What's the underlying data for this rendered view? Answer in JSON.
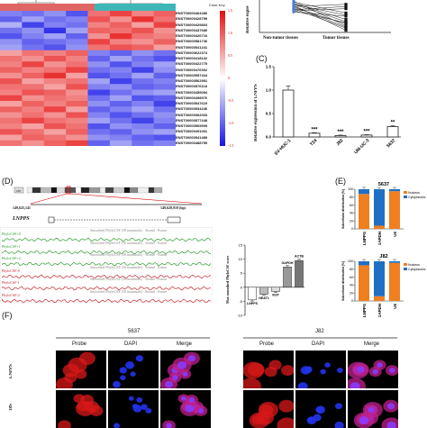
{
  "panelA": {
    "genes": [
      "ENST00000464286",
      "ENST00000428759",
      "ENST00000429803",
      "ENST00000437680",
      "ENST00000426710",
      "ENST00000581736",
      "ENST00000541241",
      "ENST00000622374",
      "ENST00000418132",
      "ENST00000422775",
      "ENST00000476302",
      "ENST00000557434",
      "ENST00000562951",
      "ENST00000576118",
      "ENST00000459094",
      "ENST00000498976",
      "ENST00000547619",
      "ENST00000534246",
      "ENST00000362033",
      "ENST00000577448",
      "ENST00000565905",
      "ENST00000491001",
      "ENST00000541489",
      "ENST00000488759"
    ],
    "colorbar_label": "Color Key",
    "colorbar_ticks": [
      "1.5",
      "1.0",
      "0.5",
      "0",
      "-0.5",
      "-1.0",
      "-1.5"
    ],
    "heatmap_values": [
      [
        -0.8,
        -0.9,
        -0.7,
        -1.1,
        0.9,
        1.2,
        0.8,
        1.0
      ],
      [
        -1.0,
        -0.6,
        -0.9,
        -0.8,
        1.1,
        0.7,
        1.3,
        0.9
      ],
      [
        -0.5,
        -1.2,
        -0.8,
        -0.9,
        0.8,
        1.0,
        0.6,
        1.2
      ],
      [
        -0.9,
        -0.7,
        -1.3,
        -0.6,
        1.0,
        0.9,
        1.1,
        0.7
      ],
      [
        -1.1,
        -0.8,
        -0.6,
        -1.0,
        0.7,
        1.3,
        0.9,
        0.8
      ],
      [
        -0.7,
        -1.0,
        -0.9,
        -0.8,
        1.2,
        0.8,
        0.7,
        1.0
      ],
      [
        -0.6,
        -0.9,
        -1.1,
        -0.7,
        0.9,
        1.1,
        1.0,
        0.6
      ],
      [
        0.6,
        0.9,
        0.8,
        1.0,
        -0.8,
        -1.0,
        -0.7,
        -0.9
      ],
      [
        0.9,
        0.7,
        1.1,
        0.8,
        -1.0,
        -0.6,
        -0.9,
        -1.1
      ],
      [
        0.8,
        1.2,
        0.7,
        0.9,
        -0.7,
        -1.1,
        -0.8,
        -0.6
      ],
      [
        1.0,
        0.8,
        0.9,
        1.2,
        -0.9,
        -0.8,
        -1.2,
        -0.7
      ],
      [
        0.7,
        1.0,
        1.3,
        0.6,
        -1.1,
        -0.9,
        -0.6,
        -1.0
      ],
      [
        1.1,
        0.6,
        0.8,
        0.9,
        -0.6,
        -1.2,
        -0.9,
        -0.8
      ],
      [
        0.9,
        0.9,
        0.6,
        1.1,
        -0.8,
        -0.7,
        -1.0,
        -0.9
      ],
      [
        0.8,
        1.1,
        1.0,
        0.7,
        -1.2,
        -0.9,
        -0.7,
        -0.6
      ],
      [
        1.2,
        0.7,
        0.9,
        0.8,
        -0.9,
        -0.6,
        -1.1,
        -1.0
      ],
      [
        0.6,
        1.0,
        0.8,
        1.0,
        -0.7,
        -1.0,
        -0.8,
        -1.2
      ],
      [
        1.0,
        0.8,
        1.2,
        0.6,
        -1.0,
        -0.8,
        -0.6,
        -0.9
      ],
      [
        0.7,
        0.9,
        0.7,
        1.1,
        -0.8,
        -1.1,
        -0.9,
        -0.7
      ],
      [
        0.9,
        1.2,
        0.9,
        0.8,
        -0.6,
        -0.9,
        -1.2,
        -0.8
      ],
      [
        0.8,
        0.6,
        1.1,
        0.9,
        -1.1,
        -0.7,
        -0.8,
        -1.0
      ],
      [
        1.1,
        0.9,
        0.6,
        1.0,
        -0.9,
        -1.0,
        -0.7,
        -0.6
      ],
      [
        0.6,
        1.0,
        0.9,
        0.7,
        -0.7,
        -0.8,
        -1.0,
        -1.1
      ],
      [
        0.9,
        0.7,
        1.0,
        1.2,
        -1.0,
        -0.6,
        -0.9,
        -0.8
      ]
    ]
  },
  "panelB": {
    "ylabel": "Relative expre",
    "categories": [
      "Non-tumor tissues",
      "Tumor tissues"
    ]
  },
  "panelC": {
    "label": "(C)",
    "ylabel": "Relative expression of LNPPS",
    "yticks": [
      "0.0",
      "0.5",
      "1.0",
      "1.5"
    ]
  },
  "panelD": {
    "label": "(D)",
    "coords_left": "149,625,141",
    "coords_right": "149,628,919 (bp)",
    "gene": "LNPPS",
    "frames": [
      "PhyloCSF+0",
      "PhyloCSF+1",
      "PhyloCSF+2",
      "PhyloCSF-0",
      "PhyloCSF-1",
      "PhyloCSF-2"
    ],
    "track_text": "Smoothed PhyloCSF (58 mammals) · Strand · Frame",
    "ylabel": "Max smoothed PhyloCSF score",
    "yticks": [
      "-10",
      "-5",
      "0",
      "5",
      "10",
      "15"
    ]
  },
  "panelE": {
    "label": "(E)",
    "ylabel": "Subcellular distribution (%)",
    "yticks": [
      "0",
      "20",
      "40",
      "60",
      "80",
      "100"
    ],
    "legend": [
      "Nucleus",
      "Cytoplasmic"
    ],
    "colors": {
      "nucleus": "#f07f1f",
      "cytoplasmic": "#1f6fc4"
    }
  },
  "panelF": {
    "label": "(F)",
    "cell_lines": [
      "5637",
      "J82"
    ],
    "columns": [
      "Probe",
      "DAPI",
      "Merge"
    ],
    "rows": [
      "LNPPS",
      "18S"
    ]
  },
  "chart_data": [
    {
      "type": "scatter",
      "title": "",
      "xlabel": "",
      "ylabel": "Relative expre",
      "categories": [
        "Non-tumor tissues",
        "Tumor tissues"
      ],
      "pairs": [
        [
          2.6,
          1.0
        ],
        [
          2.2,
          0.4
        ],
        [
          2.8,
          1.8
        ],
        [
          2.0,
          0.9
        ],
        [
          2.4,
          2.6
        ],
        [
          2.9,
          0.6
        ],
        [
          1.9,
          1.5
        ],
        [
          2.5,
          0.2
        ],
        [
          2.1,
          2.4
        ],
        [
          2.7,
          1.2
        ],
        [
          2.3,
          0.8
        ],
        [
          2.0,
          2.2
        ],
        [
          2.6,
          1.6
        ],
        [
          2.4,
          0.5
        ]
      ]
    },
    {
      "type": "bar",
      "title": "",
      "ylabel": "Relative expression of LNPPS",
      "categories": [
        "SV-HUC-1",
        "T24",
        "J82",
        "UM-UC-3",
        "5637"
      ],
      "values": [
        1.0,
        0.08,
        0.03,
        0.04,
        0.22
      ],
      "errors": [
        0.09,
        0.01,
        0.01,
        0.01,
        0.02
      ],
      "annotations": [
        "",
        "***",
        "***",
        "***",
        "**"
      ],
      "ylim": [
        0,
        1.5
      ]
    },
    {
      "type": "bar",
      "title": "",
      "ylabel": "Max smoothed PhyloCSF score",
      "categories": [
        "LNPPS",
        "NEAT1",
        "XIST",
        "GAPDH",
        "ACTB"
      ],
      "values": [
        -4.5,
        -2.5,
        -1.5,
        7.2,
        9.5
      ],
      "errors": [
        0.4,
        0.4,
        0.3,
        0.5,
        0.5
      ],
      "ylim": [
        -10,
        15
      ]
    },
    {
      "type": "bar",
      "title": "5637",
      "ylabel": "Subcellular distribution (%)",
      "categories": [
        "LNPPS",
        "GAPDH",
        "U6"
      ],
      "series": [
        {
          "name": "Nucleus",
          "values": [
            88,
            8,
            95
          ]
        },
        {
          "name": "Cytoplasmic",
          "values": [
            12,
            92,
            5
          ]
        }
      ],
      "ylim": [
        0,
        100
      ]
    },
    {
      "type": "bar",
      "title": "J82",
      "ylabel": "Subcellular distribution (%)",
      "categories": [
        "LNPPS",
        "GAPDH",
        "U6"
      ],
      "series": [
        {
          "name": "Nucleus",
          "values": [
            90,
            12,
            96
          ]
        },
        {
          "name": "Cytoplasmic",
          "values": [
            10,
            88,
            4
          ]
        }
      ],
      "ylim": [
        0,
        100
      ]
    }
  ]
}
